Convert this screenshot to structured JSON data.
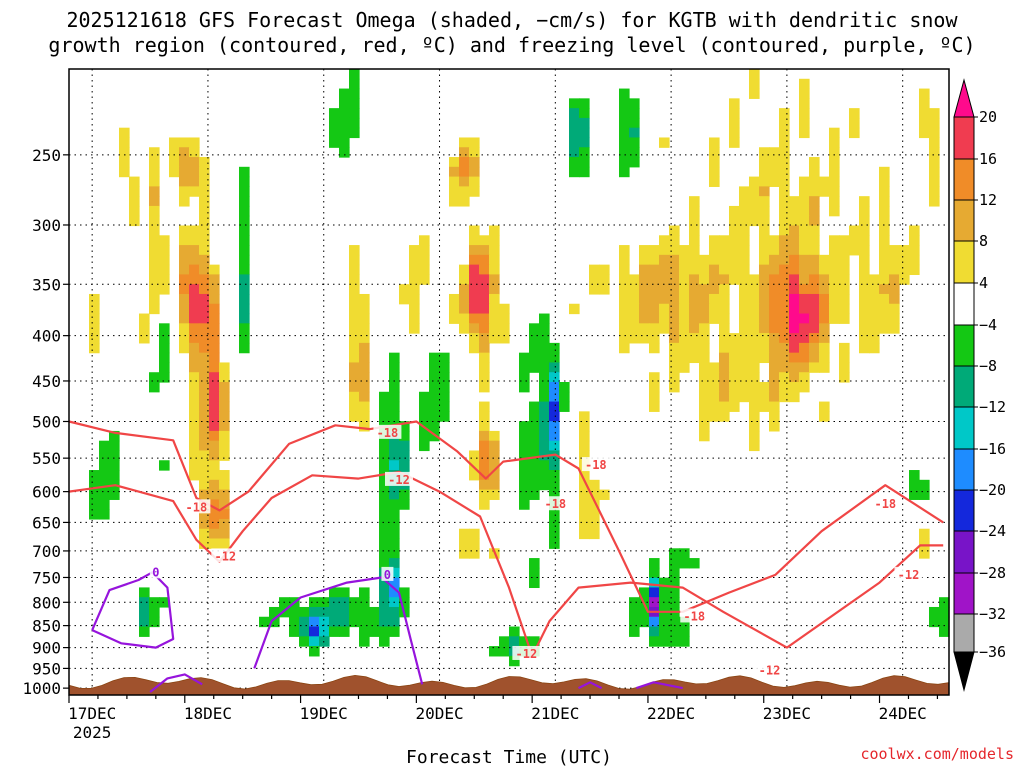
{
  "chart_data": {
    "type": "heatmap",
    "title": {
      "line1": "2025121618 GFS Forecast Omega (shaded, −cm/s) for KGTB with dendritic snow",
      "line2": "growth region (contoured, red, ºC) and freezing level (contoured, purple, ºC)"
    },
    "xlabel": "Forecast Time (UTC)",
    "ylabel": "",
    "x_range_days": [
      0,
      7.6
    ],
    "x_ticks": [
      {
        "label": "17DEC",
        "day": 0.2,
        "sub": "2025"
      },
      {
        "label": "18DEC",
        "day": 1.2
      },
      {
        "label": "19DEC",
        "day": 2.2
      },
      {
        "label": "20DEC",
        "day": 3.2
      },
      {
        "label": "21DEC",
        "day": 4.2
      },
      {
        "label": "22DEC",
        "day": 5.2
      },
      {
        "label": "23DEC",
        "day": 6.2
      },
      {
        "label": "24DEC",
        "day": 7.2
      }
    ],
    "y_axis": {
      "type": "log",
      "inverted": true,
      "range_hpa": [
        1018,
        200
      ]
    },
    "y_ticks": [
      250,
      300,
      350,
      400,
      450,
      500,
      550,
      600,
      650,
      700,
      750,
      800,
      850,
      900,
      950,
      1000
    ],
    "grid": true,
    "colorbar": {
      "labels": [
        "20",
        "16",
        "12",
        "8",
        "4",
        "−4",
        "−8",
        "−12",
        "−16",
        "−20",
        "−24",
        "−28",
        "−32",
        "−36"
      ],
      "colors": [
        "#ff0a8c",
        "#f03c50",
        "#f08c28",
        "#e6aa32",
        "#f0dc32",
        "#ffffff",
        "#14c814",
        "#00aa78",
        "#00c8c8",
        "#1e8cff",
        "#1428dc",
        "#7814c8",
        "#a014c8",
        "#aaaaaa",
        "#000000"
      ]
    },
    "omega_blobs": [
      {
        "day": 1.1,
        "hpa": 360,
        "dx": 0.15,
        "dy": 0.13,
        "v": 20
      },
      {
        "day": 1.23,
        "hpa": 470,
        "dx": 0.13,
        "dy": 0.17,
        "v": 18
      },
      {
        "day": 1.05,
        "hpa": 260,
        "dx": 0.12,
        "dy": 0.08,
        "v": 14
      },
      {
        "day": 1.25,
        "hpa": 630,
        "dx": 0.12,
        "dy": 0.08,
        "v": 16
      },
      {
        "day": 0.75,
        "hpa": 330,
        "dx": 0.1,
        "dy": 0.3,
        "v": 8
      },
      {
        "day": 2.5,
        "hpa": 420,
        "dx": 0.1,
        "dy": 0.25,
        "v": 10
      },
      {
        "day": 3.0,
        "hpa": 360,
        "dx": 0.08,
        "dy": 0.2,
        "v": 8
      },
      {
        "day": 3.55,
        "hpa": 360,
        "dx": 0.15,
        "dy": 0.14,
        "v": 20
      },
      {
        "day": 3.6,
        "hpa": 550,
        "dx": 0.13,
        "dy": 0.1,
        "v": 14
      },
      {
        "day": 3.4,
        "hpa": 260,
        "dx": 0.12,
        "dy": 0.08,
        "v": 12
      },
      {
        "day": 3.55,
        "hpa": 700,
        "dx": 0.17,
        "dy": 0.06,
        "v": 6
      },
      {
        "day": 5.15,
        "hpa": 360,
        "dx": 0.55,
        "dy": 0.14,
        "v": 10
      },
      {
        "day": 6.3,
        "hpa": 380,
        "dx": 0.25,
        "dy": 0.13,
        "v": 18
      },
      {
        "day": 6.2,
        "hpa": 300,
        "dx": 0.65,
        "dy": 0.35,
        "v": 6
      },
      {
        "day": 7.05,
        "hpa": 350,
        "dx": 0.25,
        "dy": 0.2,
        "v": 6
      },
      {
        "day": 5.7,
        "hpa": 460,
        "dx": 0.5,
        "dy": 0.12,
        "v": 6
      },
      {
        "day": 7.45,
        "hpa": 240,
        "dx": 0.1,
        "dy": 0.12,
        "v": 6
      },
      {
        "day": 0.2,
        "hpa": 420,
        "dx": 0.17,
        "dy": 0.18,
        "v": 4
      },
      {
        "day": 0.5,
        "hpa": 260,
        "dx": 0.1,
        "dy": 0.1,
        "v": 6
      },
      {
        "day": 0.35,
        "hpa": 720,
        "dx": 0.18,
        "dy": 0.07,
        "v": 4
      },
      {
        "day": 0.65,
        "hpa": 820,
        "dx": 0.17,
        "dy": 0.06,
        "v": -8
      },
      {
        "day": 0.78,
        "hpa": 450,
        "dx": 0.05,
        "dy": 0.2,
        "v": -10
      },
      {
        "day": 0.85,
        "hpa": 400,
        "dx": 0.03,
        "dy": 0.1,
        "v": -18
      },
      {
        "day": 1.5,
        "hpa": 350,
        "dx": 0.05,
        "dy": 0.3,
        "v": -8
      },
      {
        "day": 2.35,
        "hpa": 830,
        "dx": 0.55,
        "dy": 0.07,
        "v": -9
      },
      {
        "day": 2.1,
        "hpa": 860,
        "dx": 0.1,
        "dy": 0.04,
        "v": -16
      },
      {
        "day": 2.78,
        "hpa": 560,
        "dx": 0.1,
        "dy": 0.28,
        "v": -8
      },
      {
        "day": 2.85,
        "hpa": 550,
        "dx": 0.04,
        "dy": 0.1,
        "v": -20
      },
      {
        "day": 2.78,
        "hpa": 760,
        "dx": 0.07,
        "dy": 0.07,
        "v": -18
      },
      {
        "day": 2.85,
        "hpa": 680,
        "dx": 0.03,
        "dy": 0.04,
        "v": -24
      },
      {
        "day": 3.15,
        "hpa": 450,
        "dx": 0.1,
        "dy": 0.2,
        "v": -8
      },
      {
        "day": 2.4,
        "hpa": 230,
        "dx": 0.1,
        "dy": 0.15,
        "v": -8
      },
      {
        "day": 4.05,
        "hpa": 520,
        "dx": 0.15,
        "dy": 0.3,
        "v": -8
      },
      {
        "day": 4.2,
        "hpa": 480,
        "dx": 0.05,
        "dy": 0.15,
        "v": -18
      },
      {
        "day": 4.5,
        "hpa": 600,
        "dx": 0.15,
        "dy": 0.15,
        "v": 6
      },
      {
        "day": 3.9,
        "hpa": 900,
        "dx": 0.25,
        "dy": 0.04,
        "v": -8
      },
      {
        "day": 5.1,
        "hpa": 820,
        "dx": 0.2,
        "dy": 0.1,
        "v": -10
      },
      {
        "day": 5.05,
        "hpa": 800,
        "dx": 0.04,
        "dy": 0.05,
        "v": -18
      },
      {
        "day": 5.35,
        "hpa": 720,
        "dx": 0.1,
        "dy": 0.04,
        "v": -8
      },
      {
        "day": 5.3,
        "hpa": 240,
        "dx": 0.3,
        "dy": 0.08,
        "v": 1
      },
      {
        "day": 4.4,
        "hpa": 240,
        "dx": 0.1,
        "dy": 0.12,
        "v": -10
      },
      {
        "day": 4.85,
        "hpa": 230,
        "dx": 0.08,
        "dy": 0.15,
        "v": -9
      },
      {
        "day": 7.35,
        "hpa": 590,
        "dx": 0.1,
        "dy": 0.05,
        "v": -10
      },
      {
        "day": 7.5,
        "hpa": 830,
        "dx": 0.08,
        "dy": 0.05,
        "v": -8
      },
      {
        "day": 7.35,
        "hpa": 680,
        "dx": 0.1,
        "dy": 0.1,
        "v": 6
      },
      {
        "day": 6.65,
        "hpa": 860,
        "dx": 0.5,
        "dy": 0.07,
        "v": 0
      },
      {
        "day": 0.3,
        "hpa": 600,
        "dx": 0.1,
        "dy": 0.2,
        "v": -8
      }
    ],
    "snow_growth_contours": [
      {
        "label": "-18",
        "label_day": 1.1,
        "label_hpa": 625,
        "points": [
          [
            0,
            500
          ],
          [
            0.4,
            515
          ],
          [
            0.9,
            525
          ],
          [
            1.1,
            610
          ],
          [
            1.3,
            630
          ],
          [
            1.55,
            600
          ],
          [
            1.9,
            530
          ],
          [
            2.3,
            505
          ],
          [
            2.6,
            510
          ],
          [
            3.0,
            500
          ],
          [
            3.35,
            540
          ],
          [
            3.6,
            580
          ],
          [
            3.75,
            555
          ],
          [
            4.2,
            545
          ],
          [
            4.4,
            565
          ],
          [
            4.75,
            700
          ],
          [
            5.0,
            820
          ],
          [
            5.3,
            820
          ],
          [
            5.7,
            780
          ],
          [
            6.1,
            745
          ],
          [
            6.5,
            665
          ],
          [
            7.05,
            590
          ],
          [
            7.55,
            650
          ]
        ]
      },
      {
        "label": "-12",
        "label_day": 1.35,
        "label_hpa": 710,
        "points": [
          [
            0,
            600
          ],
          [
            0.4,
            590
          ],
          [
            0.9,
            615
          ],
          [
            1.1,
            680
          ],
          [
            1.3,
            720
          ],
          [
            1.5,
            665
          ],
          [
            1.75,
            610
          ],
          [
            2.1,
            575
          ],
          [
            2.5,
            580
          ],
          [
            2.85,
            570
          ],
          [
            3.2,
            600
          ],
          [
            3.55,
            640
          ],
          [
            3.8,
            770
          ],
          [
            4.0,
            920
          ],
          [
            4.15,
            840
          ],
          [
            4.4,
            770
          ],
          [
            4.85,
            760
          ],
          [
            5.3,
            770
          ],
          [
            5.65,
            820
          ],
          [
            6.2,
            900
          ],
          [
            7.0,
            760
          ],
          [
            7.35,
            690
          ],
          [
            7.55,
            690
          ]
        ]
      },
      {
        "label": "-18",
        "label_day": 2.75,
        "label_hpa": 515,
        "points": []
      },
      {
        "label": "-12",
        "label_day": 2.85,
        "label_hpa": 582,
        "points": []
      },
      {
        "label": "-18",
        "label_day": 4.55,
        "label_hpa": 560,
        "points": []
      },
      {
        "label": "-18",
        "label_day": 4.2,
        "label_hpa": 620,
        "points": []
      },
      {
        "label": "-12",
        "label_day": 3.95,
        "label_hpa": 915,
        "points": []
      },
      {
        "label": "-18",
        "label_day": 5.4,
        "label_hpa": 830,
        "points": []
      },
      {
        "label": "-12",
        "label_day": 6.05,
        "label_hpa": 955,
        "points": []
      },
      {
        "label": "-18",
        "label_day": 7.05,
        "label_hpa": 620,
        "points": []
      },
      {
        "label": "-12",
        "label_day": 7.25,
        "label_hpa": 745,
        "points": []
      }
    ],
    "freezing_contours": [
      {
        "label": "0",
        "label_day": 0.75,
        "label_hpa": 740,
        "points": [
          [
            0.2,
            860
          ],
          [
            0.35,
            775
          ],
          [
            0.6,
            755
          ],
          [
            0.72,
            740
          ],
          [
            0.85,
            770
          ],
          [
            0.9,
            880
          ],
          [
            0.75,
            900
          ],
          [
            0.45,
            890
          ],
          [
            0.2,
            860
          ]
        ]
      },
      {
        "label": "0",
        "label_day": 2.75,
        "label_hpa": 745,
        "points": [
          [
            1.6,
            950
          ],
          [
            1.75,
            840
          ],
          [
            2.0,
            790
          ],
          [
            2.4,
            760
          ],
          [
            2.7,
            750
          ],
          [
            2.85,
            780
          ],
          [
            2.95,
            880
          ],
          [
            3.05,
            990
          ]
        ]
      },
      {
        "label": "",
        "label_day": 0,
        "label_hpa": 0,
        "points": [
          [
            0.7,
            1010
          ],
          [
            0.85,
            975
          ],
          [
            1.0,
            965
          ],
          [
            1.15,
            990
          ]
        ]
      },
      {
        "label": "",
        "label_day": 0,
        "label_hpa": 0,
        "points": [
          [
            4.4,
            1000
          ],
          [
            4.5,
            985
          ],
          [
            4.6,
            1000
          ]
        ]
      },
      {
        "label": "",
        "label_day": 0,
        "label_hpa": 0,
        "points": [
          [
            4.9,
            1000
          ],
          [
            5.05,
            985
          ],
          [
            5.3,
            1000
          ]
        ]
      }
    ],
    "terrain_top_hpa": 985
  },
  "credit": "coolwx.com/models"
}
